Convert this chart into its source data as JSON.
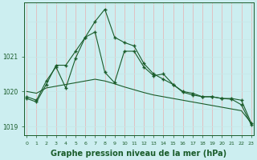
{
  "line1": [
    1019.8,
    1019.7,
    1020.2,
    1020.75,
    1020.75,
    1021.15,
    1021.55,
    1022.0,
    1022.35,
    1021.55,
    1021.4,
    1021.3,
    1020.8,
    1020.5,
    1020.35,
    1020.2,
    1020.0,
    1019.95,
    1019.85,
    1019.85,
    1019.8,
    1019.8,
    1019.75,
    1019.1
  ],
  "line2": [
    1020.0,
    1019.95,
    1020.1,
    1020.15,
    1020.2,
    1020.25,
    1020.3,
    1020.35,
    1020.3,
    1020.22,
    1020.13,
    1020.05,
    1019.97,
    1019.9,
    1019.85,
    1019.8,
    1019.75,
    1019.7,
    1019.65,
    1019.6,
    1019.55,
    1019.5,
    1019.45,
    1019.1
  ],
  "line3": [
    1019.85,
    1019.75,
    1020.3,
    1020.7,
    1020.1,
    1020.95,
    1021.55,
    1021.7,
    1020.55,
    1020.25,
    1021.15,
    1021.15,
    1020.7,
    1020.45,
    1020.5,
    1020.2,
    1019.98,
    1019.9,
    1019.85,
    1019.85,
    1019.8,
    1019.78,
    1019.62,
    1019.05
  ],
  "x": [
    0,
    1,
    2,
    3,
    4,
    5,
    6,
    7,
    8,
    9,
    10,
    11,
    12,
    13,
    14,
    15,
    16,
    17,
    18,
    19,
    20,
    21,
    22,
    23
  ],
  "ylim": [
    1018.75,
    1022.55
  ],
  "yticks": [
    1019,
    1020,
    1021
  ],
  "xticks": [
    0,
    1,
    2,
    3,
    4,
    5,
    6,
    7,
    8,
    9,
    10,
    11,
    12,
    13,
    14,
    15,
    16,
    17,
    18,
    19,
    20,
    21,
    22,
    23
  ],
  "line_color": "#1a5c2a",
  "bg_color": "#cceef0",
  "grid_color_v": "#e8b0b0",
  "grid_color_h": "#c8e8e8",
  "xlabel": "Graphe pression niveau de la mer (hPa)",
  "xlabel_fontsize": 7,
  "marker": "+",
  "marker_size": 3,
  "linewidth": 0.8
}
